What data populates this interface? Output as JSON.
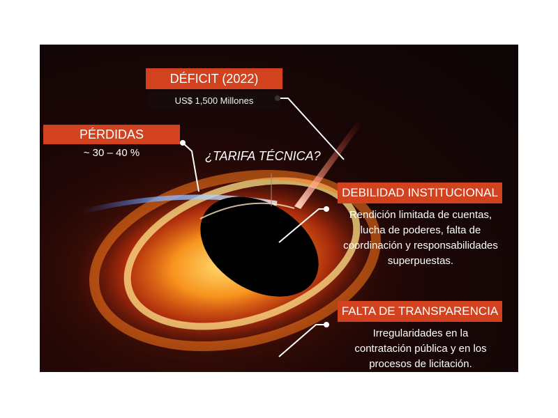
{
  "callouts": {
    "deficit": {
      "title": "DÉFICIT (2022)",
      "value": "US$ 1,500 Millones"
    },
    "perdidas": {
      "title": "PÉRDIDAS",
      "value": "~ 30 – 40 %"
    },
    "tarifa": {
      "question": "¿TARIFA TÉCNICA?"
    },
    "debilidad": {
      "title": "DEBILIDAD INSTITUCIONAL",
      "lines": [
        "Rendición limitada de cuentas,",
        "lucha de poderes, falta de",
        "coordinación y responsabilidades",
        "superpuestas."
      ]
    },
    "transparencia": {
      "title": "FALTA DE TRANSPARENCIA",
      "lines": [
        "Irregularidades en la",
        "contratación pública y en los",
        "procesos de licitación."
      ]
    }
  },
  "colors": {
    "label_red": "#d2421e",
    "background": "#0c0506",
    "text": "#ffffff"
  }
}
